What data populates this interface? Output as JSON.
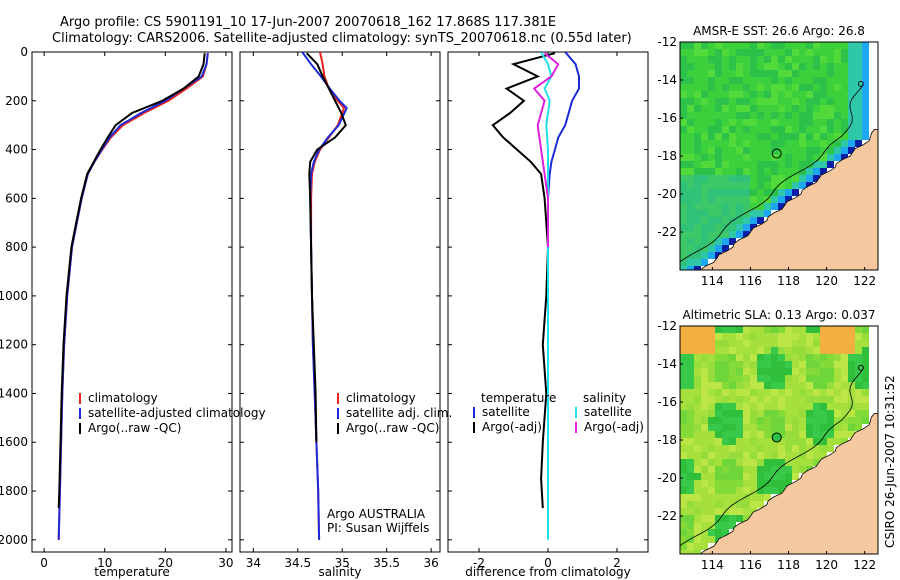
{
  "figure": {
    "title_line1": "Argo profile: CS 5901191_10 17-Jun-2007 20070618_162 17.868S 117.381E",
    "title_line2": "Climatology: CARS2006. Satellite-adjusted climatology: synTS_20070618.nc (0.55d later)",
    "side_label": "CSIRO 26-Jun-2007 10:31:52"
  },
  "colors": {
    "climatology": "#e8231f",
    "satellite": "#1c2bd8",
    "argo": "#000000",
    "satellite_diff": "#22e0e8",
    "argo_diff": "#e020e0",
    "land": "#f6c8a0",
    "map_green": "#3ccf3c"
  },
  "chart_data": [
    {
      "type": "line",
      "name": "temperature-profile",
      "xlabel": "temperature",
      "ylabel": "",
      "xlim": [
        -2,
        31
      ],
      "ylim": [
        2050,
        0
      ],
      "xticks": [
        0,
        10,
        20,
        30
      ],
      "yticks": [
        0,
        200,
        400,
        600,
        800,
        1000,
        1200,
        1400,
        1600,
        1800,
        2000
      ],
      "legend": [
        "climatology",
        "satellite-adjusted climatology",
        "Argo(..raw -QC)"
      ],
      "legend_placement": "lower-right",
      "series": [
        {
          "name": "climatology",
          "color": "#e8231f",
          "x": [
            27.0,
            26.8,
            26.2,
            23.5,
            20.5,
            16.5,
            13.0,
            11.0,
            9.6,
            8.3,
            7.2,
            6.2,
            5.4,
            4.6,
            3.8,
            3.3,
            3.0,
            2.8,
            2.6,
            2.5,
            2.4
          ],
          "y": [
            5,
            50,
            100,
            150,
            200,
            250,
            300,
            350,
            400,
            450,
            500,
            600,
            700,
            800,
            1000,
            1200,
            1400,
            1600,
            1800,
            1900,
            2000
          ]
        },
        {
          "name": "satellite-adjusted climatology",
          "color": "#1c2bd8",
          "x": [
            27.0,
            26.8,
            26.0,
            23.0,
            20.0,
            16.0,
            12.6,
            10.8,
            9.5,
            8.3,
            7.2,
            6.2,
            5.4,
            4.6,
            3.8,
            3.3,
            3.0,
            2.8,
            2.6,
            2.5,
            2.4
          ],
          "y": [
            5,
            50,
            100,
            150,
            200,
            250,
            300,
            350,
            400,
            450,
            500,
            600,
            700,
            800,
            1000,
            1200,
            1400,
            1600,
            1800,
            1900,
            2000
          ]
        },
        {
          "name": "Argo(..raw -QC)",
          "color": "#000000",
          "x": [
            26.5,
            26.3,
            25.5,
            23.0,
            19.5,
            14.5,
            11.8,
            10.5,
            9.3,
            8.2,
            7.1,
            6.1,
            5.3,
            4.5,
            3.7,
            3.2,
            2.9,
            2.7,
            2.5,
            2.4
          ],
          "y": [
            5,
            50,
            100,
            150,
            200,
            250,
            300,
            350,
            400,
            450,
            500,
            600,
            700,
            800,
            1000,
            1200,
            1400,
            1600,
            1800,
            1870
          ]
        }
      ]
    },
    {
      "type": "line",
      "name": "salinity-profile",
      "xlabel": "salinity",
      "ylabel": "",
      "xlim": [
        33.85,
        36.1
      ],
      "ylim": [
        2050,
        0
      ],
      "xticks": [
        34,
        34.5,
        35,
        35.5,
        36
      ],
      "xtick_labels": [
        "34",
        "34.5",
        "35",
        "35.5",
        "36"
      ],
      "legend": [
        "climatology",
        "satellite adj. clim.",
        "Argo(..raw -QC)"
      ],
      "legend_placement": "lower-right",
      "annotation": [
        "Argo AUSTRALIA",
        "PI: Susan Wijffels"
      ],
      "series": [
        {
          "name": "climatology",
          "color": "#e8231f",
          "x": [
            34.75,
            34.78,
            34.8,
            34.85,
            34.95,
            35.02,
            34.95,
            34.85,
            34.75,
            34.69,
            34.66,
            34.65,
            34.65,
            34.66,
            34.67,
            34.69,
            34.71,
            34.73,
            34.74
          ],
          "y": [
            0,
            50,
            100,
            150,
            200,
            230,
            300,
            350,
            400,
            450,
            500,
            600,
            800,
            1000,
            1200,
            1400,
            1600,
            1800,
            2000
          ]
        },
        {
          "name": "satellite adj. clim.",
          "color": "#1c2bd8",
          "x": [
            34.55,
            34.65,
            34.76,
            34.86,
            34.97,
            35.05,
            34.96,
            34.84,
            34.74,
            34.68,
            34.65,
            34.64,
            34.65,
            34.66,
            34.67,
            34.69,
            34.71,
            34.73,
            34.74
          ],
          "y": [
            0,
            50,
            100,
            150,
            200,
            230,
            300,
            350,
            400,
            450,
            500,
            600,
            800,
            1000,
            1200,
            1400,
            1600,
            1800,
            2000
          ]
        },
        {
          "name": "Argo(..raw -QC)",
          "color": "#000000",
          "x": [
            34.6,
            34.72,
            34.78,
            34.85,
            34.92,
            34.99,
            35.04,
            34.92,
            34.72,
            34.64,
            34.63,
            34.64,
            34.65,
            34.66,
            34.68,
            34.7,
            34.71
          ],
          "y": [
            5,
            50,
            100,
            150,
            200,
            250,
            300,
            350,
            400,
            450,
            500,
            600,
            800,
            1000,
            1200,
            1400,
            1600
          ]
        }
      ]
    },
    {
      "type": "line",
      "name": "difference-profile",
      "xlabel": "difference from climatology",
      "ylabel": "",
      "xlim": [
        -2.9,
        2.9
      ],
      "ylim": [
        2050,
        0
      ],
      "xticks": [
        -2,
        0,
        2
      ],
      "legend_headers": [
        "temperature",
        "salinity"
      ],
      "legend": [
        "satellite",
        "Argo(-adj)",
        "satellite",
        "Argo(-adj)"
      ],
      "legend_placement": "lower-center",
      "series": [
        {
          "name": "temperature satellite",
          "color": "#1c2bd8",
          "x": [
            0.5,
            0.8,
            0.9,
            0.9,
            0.7,
            0.6,
            0.5,
            0.3,
            0.2,
            0.1,
            0.05,
            0.0,
            0.0
          ],
          "y": [
            0,
            50,
            100,
            150,
            200,
            250,
            300,
            350,
            400,
            450,
            500,
            600,
            800
          ]
        },
        {
          "name": "temperature Argo(-adj)",
          "color": "#000000",
          "x": [
            0.2,
            -1.0,
            -0.3,
            -1.2,
            -0.7,
            -1.1,
            -1.6,
            -1.3,
            -0.9,
            -0.5,
            -0.2,
            -0.1,
            0.0,
            -0.05,
            -0.15,
            -0.05,
            -0.15,
            -0.2,
            -0.15
          ],
          "y": [
            5,
            50,
            100,
            150,
            200,
            250,
            300,
            350,
            400,
            450,
            500,
            600,
            800,
            1000,
            1200,
            1400,
            1600,
            1750,
            1870
          ]
        },
        {
          "name": "salinity satellite",
          "color": "#22e0e8",
          "x": [
            -0.2,
            0.0,
            0.1,
            -0.1,
            0.05,
            -0.05,
            0.0,
            0.0,
            0.0,
            0.0,
            0.0,
            0.0,
            0.0,
            0.0,
            0.0,
            0.0
          ],
          "y": [
            0,
            50,
            100,
            150,
            200,
            300,
            400,
            500,
            600,
            800,
            1000,
            1200,
            1400,
            1600,
            1800,
            2000
          ]
        },
        {
          "name": "salinity Argo(-adj)",
          "color": "#e020e0",
          "x": [
            -0.1,
            0.3,
            0.1,
            -0.4,
            -0.1,
            -0.3,
            -0.2,
            -0.1,
            0.0,
            0.0
          ],
          "y": [
            5,
            50,
            100,
            150,
            200,
            300,
            400,
            500,
            600,
            800
          ]
        }
      ]
    },
    {
      "type": "heatmap",
      "name": "sst-map",
      "title": "AMSR-E SST: 26.6 Argo: 26.8",
      "xlim": [
        112.3,
        122.7
      ],
      "ylim": [
        -24,
        -12
      ],
      "xticks": [
        114,
        116,
        118,
        120,
        122
      ],
      "yticks": [
        -12,
        -14,
        -16,
        -18,
        -20,
        -22
      ],
      "marker": {
        "lon": 117.381,
        "lat": -17.868
      }
    },
    {
      "type": "heatmap",
      "name": "sla-map",
      "title": "Altimetric SLA: 0.13 Argo: 0.037",
      "xlim": [
        112.3,
        122.7
      ],
      "ylim": [
        -24,
        -12
      ],
      "xticks": [
        114,
        116,
        118,
        120,
        122
      ],
      "yticks": [
        -12,
        -14,
        -16,
        -18,
        -20,
        -22
      ],
      "marker": {
        "lon": 117.381,
        "lat": -17.868
      }
    }
  ]
}
